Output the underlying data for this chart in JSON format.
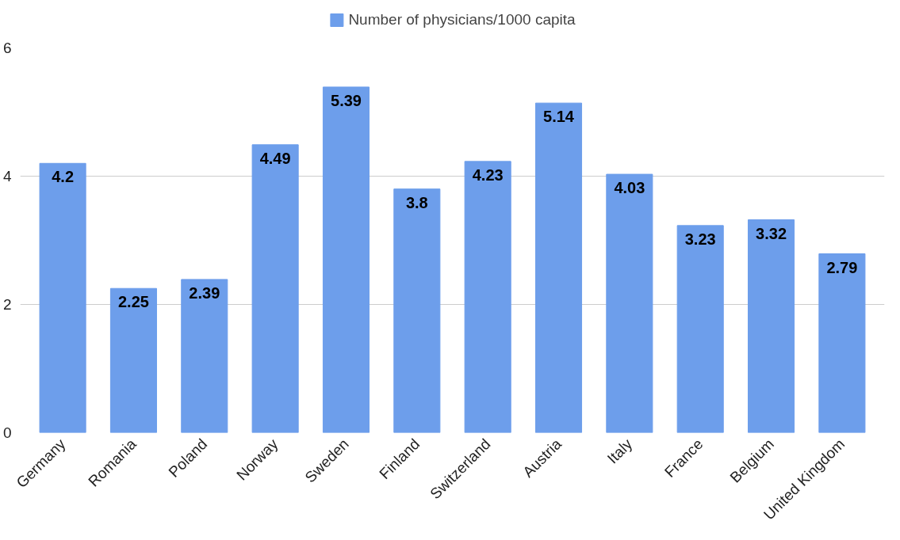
{
  "chart_data": {
    "type": "bar",
    "categories": [
      "Germany",
      "Romania",
      "Poland",
      "Norway",
      "Sweden",
      "Finland",
      "Switzerland",
      "Austria",
      "Italy",
      "France",
      "Belgium",
      "United Kingdom"
    ],
    "series": [
      {
        "name": "Number of physicians/1000 capita",
        "color": "#6d9eeb",
        "values": [
          4.2,
          2.25,
          2.39,
          4.49,
          5.39,
          3.8,
          4.23,
          5.14,
          4.03,
          3.23,
          3.32,
          2.79
        ]
      }
    ],
    "ylim": [
      0,
      6
    ],
    "yticks": [
      0,
      2,
      4,
      6
    ],
    "grid": "y",
    "legend": "top",
    "data_labels": true
  }
}
